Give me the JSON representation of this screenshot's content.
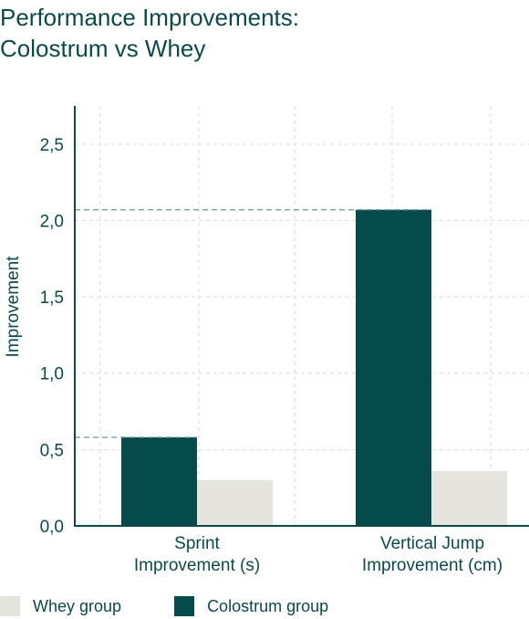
{
  "chart_data": {
    "type": "bar",
    "title_lines": [
      "Performance Improvements:",
      "Colostrum vs Whey"
    ],
    "ylabel": "Improvement",
    "xlabel": "",
    "ylim": [
      0,
      2.75
    ],
    "yticks": [
      "0,0",
      "0,5",
      "1,0",
      "1,5",
      "2,0",
      "2,5"
    ],
    "ytick_values": [
      0,
      0.5,
      1.0,
      1.5,
      2.0,
      2.5
    ],
    "grid": true,
    "legend_position": "bottom-left",
    "categories": [
      [
        "Sprint",
        "Improvement (s)"
      ],
      [
        "Vertical Jump",
        "Improvement (cm)"
      ]
    ],
    "series": [
      {
        "name": "Colostrum group",
        "color": "#064b4b",
        "values": [
          0.58,
          2.07
        ]
      },
      {
        "name": "Whey group",
        "color": "#e6e5dd",
        "values": [
          0.3,
          0.36
        ]
      }
    ],
    "reference_lines": [
      0.58,
      2.07
    ]
  },
  "legend": {
    "items": [
      {
        "label": "Whey group",
        "color": "#e6e5dd"
      },
      {
        "label": "Colostrum group",
        "color": "#064b4b"
      }
    ]
  },
  "colors": {
    "text": "#0b4a4a",
    "axis": "#0b4a4a",
    "grid": "#d9dede",
    "reference": "#6f9595"
  }
}
